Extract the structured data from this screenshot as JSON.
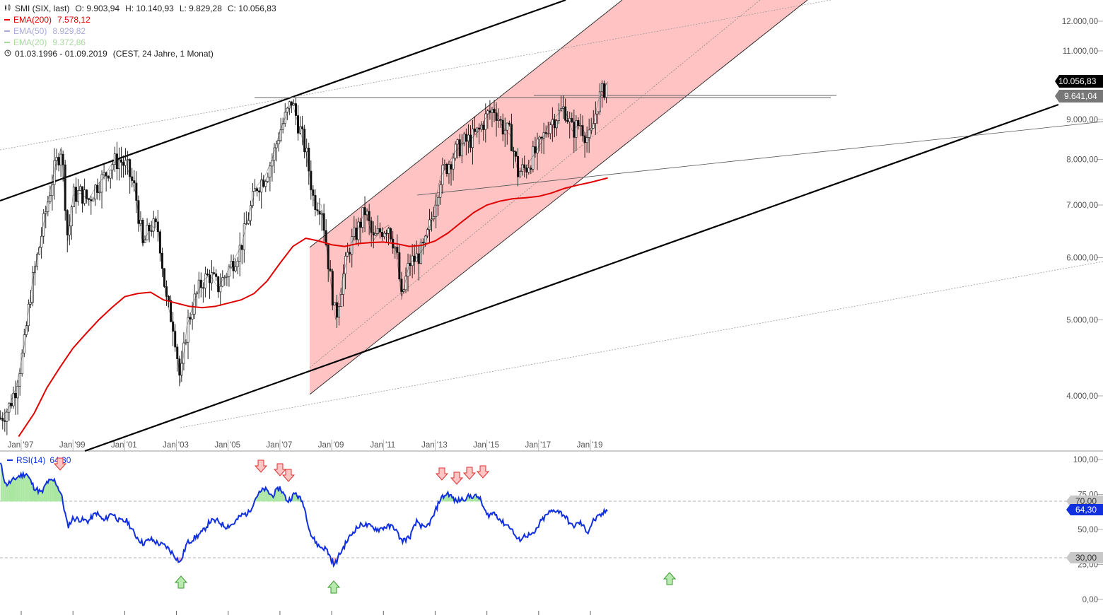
{
  "header": {
    "symbol": "SMI (SIX, last)",
    "ohlc": {
      "o_label": "O:",
      "o": "9.903,94",
      "h_label": "H:",
      "h": "10.140,93",
      "l_label": "L:",
      "l": "9.829,28",
      "c_label": "C:",
      "c": "10.056,83"
    },
    "indicators": [
      {
        "label": "EMA(200)",
        "value": "7.578,12",
        "color": "#e00000"
      },
      {
        "label": "EMA(50)",
        "value": "8.929,82",
        "color": "#a8aadc"
      },
      {
        "label": "EMA(20)",
        "value": "9.372,86",
        "color": "#a9d8a0"
      }
    ],
    "range": "01.03.1996 - 01.09.2019",
    "range_detail": "(CEST, 24 Jahre, 1 Monat)"
  },
  "rsi_legend": {
    "label": "RSI(14)",
    "value": "64,30",
    "color": "#1030e0"
  },
  "price_tags": {
    "last": "10.056,83",
    "level": "9.641,04",
    "rsi_last": "64,30",
    "rsi_upper": "70,00",
    "rsi_lower": "30,00"
  },
  "chart_data": [
    {
      "type": "line",
      "title": "SMI (SIX, last)",
      "scale": "log",
      "ylim": [
        3600,
        13500
      ],
      "y_ticks": [
        "4.000,00",
        "5.000,00",
        "6.000,00",
        "7.000,00",
        "8.000,00",
        "9.000,00",
        "10.000,00",
        "11.000,00",
        "12.000,00"
      ],
      "y_tick_values": [
        4000,
        5000,
        6000,
        7000,
        8000,
        9000,
        10000,
        11000,
        12000
      ],
      "x_ticks": [
        "Jan '97",
        "Jan '99",
        "Jan '01",
        "Jan '03",
        "Jan '05",
        "Jan '07",
        "Jan '09",
        "Jan '11",
        "Jan '13",
        "Jan '15",
        "Jan '17",
        "Jan '19"
      ],
      "x_tick_years": [
        1997,
        1999,
        2001,
        2003,
        2005,
        2007,
        2009,
        2011,
        2013,
        2015,
        2017,
        2019
      ],
      "x_range": [
        1996.15,
        2019.67
      ],
      "grid": false,
      "series": [
        {
          "name": "SMI (SIX, last)",
          "x": [
            1996.2,
            1996.5,
            1996.8,
            1997.1,
            1997.4,
            1997.7,
            1998.0,
            1998.3,
            1998.55,
            1998.8,
            1999.0,
            1999.3,
            1999.6,
            1999.9,
            2000.2,
            2000.5,
            2000.8,
            2001.1,
            2001.4,
            2001.7,
            2002.0,
            2002.3,
            2002.6,
            2002.9,
            2003.15,
            2003.4,
            2003.7,
            2004.0,
            2004.3,
            2004.6,
            2004.9,
            2005.2,
            2005.5,
            2005.8,
            2006.1,
            2006.4,
            2006.7,
            2007.0,
            2007.3,
            2007.45,
            2007.7,
            2008.0,
            2008.3,
            2008.6,
            2008.9,
            2009.15,
            2009.4,
            2009.7,
            2010.0,
            2010.3,
            2010.6,
            2010.9,
            2011.2,
            2011.5,
            2011.7,
            2012.0,
            2012.3,
            2012.6,
            2012.9,
            2013.2,
            2013.5,
            2013.8,
            2014.1,
            2014.4,
            2014.7,
            2015.0,
            2015.3,
            2015.6,
            2015.9,
            2016.2,
            2016.5,
            2016.8,
            2017.1,
            2017.4,
            2017.7,
            2018.0,
            2018.3,
            2018.6,
            2018.9,
            2019.0,
            2019.3,
            2019.67
          ],
          "values": [
            3750,
            3850,
            4100,
            4600,
            5500,
            6200,
            7000,
            7800,
            8300,
            6300,
            7200,
            7250,
            7100,
            7400,
            7600,
            7900,
            8000,
            7800,
            7300,
            6200,
            6600,
            6500,
            5300,
            4900,
            4150,
            4900,
            5300,
            5600,
            5700,
            5500,
            5700,
            5950,
            6200,
            6800,
            7400,
            7600,
            8000,
            8700,
            9200,
            9500,
            8900,
            8200,
            7100,
            7000,
            5800,
            5000,
            5600,
            6200,
            6500,
            6900,
            6300,
            6500,
            6600,
            6100,
            5300,
            5900,
            6000,
            6200,
            6800,
            7600,
            7900,
            8200,
            8400,
            8500,
            8700,
            9100,
            9300,
            8800,
            8600,
            7700,
            7800,
            8100,
            8400,
            8900,
            9100,
            9300,
            8700,
            8900,
            8500,
            8500,
            9500,
            10056.83
          ]
        },
        {
          "name": "EMA(200)",
          "x": [
            1996.9,
            1997.5,
            1998.0,
            1998.5,
            1999.0,
            1999.5,
            2000.0,
            2000.5,
            2001.0,
            2001.5,
            2002.0,
            2002.5,
            2003.0,
            2003.5,
            2004.0,
            2004.5,
            2005.0,
            2005.5,
            2006.0,
            2006.5,
            2007.0,
            2007.5,
            2008.0,
            2008.5,
            2009.0,
            2009.5,
            2010.0,
            2010.5,
            2011.0,
            2011.5,
            2012.0,
            2012.5,
            2013.0,
            2013.5,
            2014.0,
            2014.5,
            2015.0,
            2015.5,
            2016.0,
            2016.5,
            2017.0,
            2017.5,
            2018.0,
            2018.5,
            2019.0,
            2019.67
          ],
          "values": [
            3550,
            3800,
            4100,
            4350,
            4600,
            4800,
            5000,
            5180,
            5350,
            5400,
            5420,
            5300,
            5250,
            5200,
            5180,
            5200,
            5250,
            5300,
            5400,
            5600,
            5900,
            6200,
            6350,
            6300,
            6230,
            6200,
            6250,
            6270,
            6280,
            6250,
            6200,
            6220,
            6300,
            6450,
            6650,
            6850,
            7000,
            7080,
            7130,
            7150,
            7180,
            7250,
            7350,
            7420,
            7480,
            7578.12
          ]
        }
      ]
    },
    {
      "type": "line",
      "title": "RSI(14)",
      "ylim": [
        0,
        100
      ],
      "y_ticks": [
        "0,00",
        "25,00",
        "50,00",
        "75,00",
        "100,00"
      ],
      "y_tick_values": [
        0,
        25,
        50,
        75,
        100
      ],
      "reference_levels": [
        70,
        30
      ],
      "x_range": [
        1996.15,
        2019.67
      ],
      "series": [
        {
          "name": "RSI(14)",
          "x": [
            1996.2,
            1996.4,
            1996.6,
            1996.9,
            1997.2,
            1997.5,
            1997.8,
            1998.0,
            1998.3,
            1998.55,
            1998.8,
            1999.0,
            1999.3,
            1999.6,
            1999.9,
            2000.2,
            2000.5,
            2000.8,
            2001.1,
            2001.4,
            2001.7,
            2002.0,
            2002.3,
            2002.6,
            2002.9,
            2003.15,
            2003.4,
            2003.7,
            2004.0,
            2004.3,
            2004.6,
            2004.9,
            2005.2,
            2005.5,
            2005.8,
            2006.1,
            2006.4,
            2006.7,
            2007.0,
            2007.3,
            2007.6,
            2007.9,
            2008.2,
            2008.5,
            2008.8,
            2009.1,
            2009.3,
            2009.6,
            2009.9,
            2010.2,
            2010.5,
            2010.8,
            2011.1,
            2011.4,
            2011.7,
            2012.0,
            2012.3,
            2012.6,
            2012.9,
            2013.2,
            2013.5,
            2013.8,
            2014.1,
            2014.4,
            2014.7,
            2015.0,
            2015.3,
            2015.6,
            2015.9,
            2016.2,
            2016.5,
            2016.8,
            2017.1,
            2017.4,
            2017.7,
            2018.0,
            2018.3,
            2018.6,
            2018.9,
            2019.1,
            2019.4,
            2019.67
          ],
          "values": [
            97,
            82,
            84,
            88,
            90,
            80,
            76,
            84,
            85,
            75,
            52,
            58,
            57,
            56,
            62,
            56,
            62,
            56,
            56,
            46,
            40,
            43,
            40,
            38,
            32,
            26,
            40,
            44,
            48,
            56,
            56,
            52,
            54,
            60,
            62,
            74,
            79,
            74,
            80,
            70,
            76,
            69,
            46,
            38,
            36,
            24,
            32,
            42,
            50,
            54,
            52,
            50,
            52,
            52,
            42,
            44,
            56,
            50,
            58,
            72,
            76,
            70,
            72,
            74,
            73,
            60,
            62,
            55,
            52,
            42,
            46,
            46,
            56,
            62,
            64,
            60,
            52,
            55,
            48,
            56,
            60,
            64.3
          ]
        }
      ]
    }
  ]
}
